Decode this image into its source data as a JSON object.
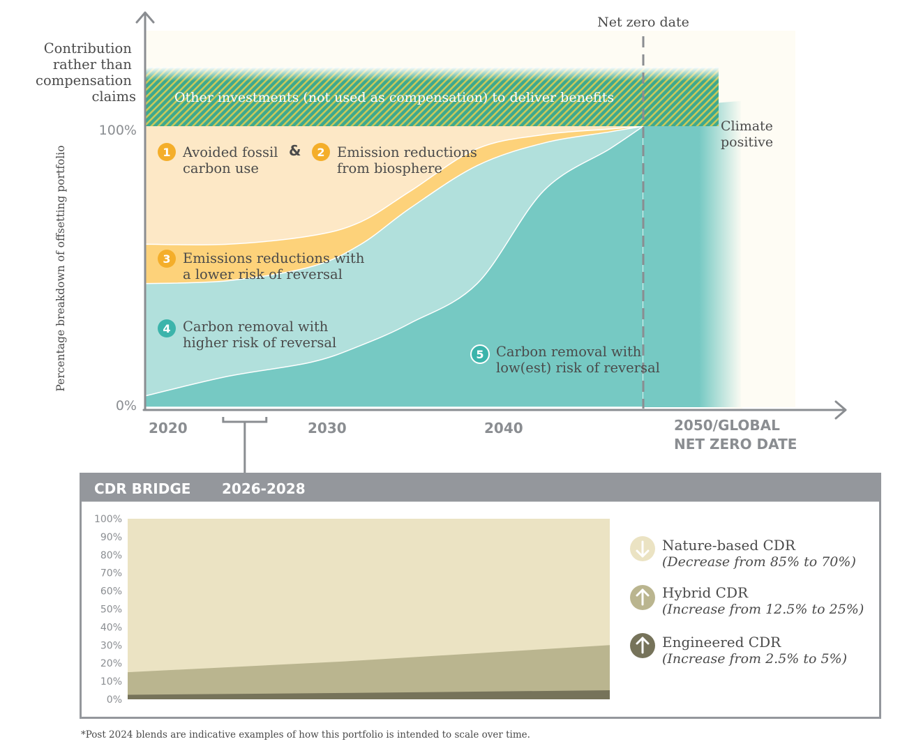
{
  "chart_data": [
    {
      "type": "area",
      "ylabel": "Percentage breakdown of offsetting portfolio",
      "y_ticks": [
        "100%",
        "0%"
      ],
      "x_ticks": [
        {
          "x": 2020,
          "label": "2020"
        },
        {
          "x": 2030,
          "label": "2030"
        },
        {
          "x": 2040,
          "label": "2040"
        },
        {
          "x": 2050,
          "label_lines": [
            "2050/GLOBAL",
            "NET ZERO DATE"
          ]
        }
      ],
      "x": [
        2020,
        2025,
        2030,
        2033,
        2036,
        2040,
        2044,
        2048,
        2050
      ],
      "series": [
        {
          "id": "s5",
          "number": "5",
          "label_lines": [
            "Carbon removal with",
            "low(est) risk of reversal"
          ],
          "values": [
            4,
            11,
            16,
            22,
            30,
            44,
            77,
            92,
            100
          ]
        },
        {
          "id": "s4",
          "number": "4",
          "label_lines": [
            "Carbon removal with",
            "higher risk of reversal"
          ],
          "values": [
            44,
            45,
            50,
            58,
            71,
            86,
            94,
            98,
            100
          ]
        },
        {
          "id": "s3",
          "number": "3",
          "label_lines": [
            "Emissions reductions with",
            "a lower risk of reversal"
          ],
          "values": [
            58,
            58,
            61,
            66,
            77,
            92,
            97,
            99,
            100
          ]
        },
        {
          "id": "s12",
          "label_parts": [
            {
              "number": "1",
              "lines": [
                "Avoided fossil",
                "carbon use"
              ]
            },
            {
              "connector": "&"
            },
            {
              "number": "2",
              "lines": [
                "Emission reductions",
                "from biosphere"
              ]
            }
          ],
          "values": [
            100,
            100,
            100,
            100,
            100,
            100,
            100,
            100,
            100
          ]
        }
      ],
      "top_band": {
        "text": "Other investments (not used as compensation) to deliver benefits",
        "side_label_lines": [
          "Contribution",
          "rather than",
          "compensation",
          "claims"
        ]
      },
      "net_zero_line": {
        "x": 2050,
        "label": "Net zero date"
      },
      "after_net_zero_label_lines": [
        "Climate",
        "positive"
      ],
      "bracket": {
        "from": 2024.7,
        "to": 2027.3
      }
    },
    {
      "type": "area",
      "title_parts": [
        "CDR BRIDGE",
        "2026-2028"
      ],
      "y_ticks": [
        "100%",
        "90%",
        "80%",
        "70%",
        "60%",
        "50%",
        "40%",
        "30%",
        "20%",
        "10%",
        "0%"
      ],
      "ylim": [
        0,
        100
      ],
      "x_frac": [
        0,
        0.45,
        1
      ],
      "series": [
        {
          "name": "Engineered CDR",
          "note": "(Increase from 2.5% to 5%)",
          "direction": "up",
          "values": [
            2.5,
            3.5,
            5
          ]
        },
        {
          "name": "Hybrid CDR",
          "note": "(Increase from 12.5% to 25%)",
          "direction": "up",
          "values": [
            12.5,
            17.5,
            25
          ]
        },
        {
          "name": "Nature-based CDR",
          "note": "(Decrease from 85% to 70%)",
          "direction": "down",
          "values": [
            85,
            79,
            70
          ]
        }
      ]
    }
  ],
  "footnote": "*Post 2024 blends are indicative examples of how this portfolio is intended to scale over time.",
  "colors": {
    "s5": "#76c9c3",
    "s4": "#b1e0dc",
    "s3": "#fdd27a",
    "s12": "#fde8c6",
    "band_green": "#3ea88e",
    "band_yellow": "#c9c95a",
    "badge_orange": "#f4ae2a",
    "badge_teal": "#3cb4ab",
    "axis_gray": "#8a8d91",
    "panel_header": "#94979c",
    "nature": "#ebe3c3",
    "hybrid": "#bab58f",
    "engineered": "#76735a"
  }
}
